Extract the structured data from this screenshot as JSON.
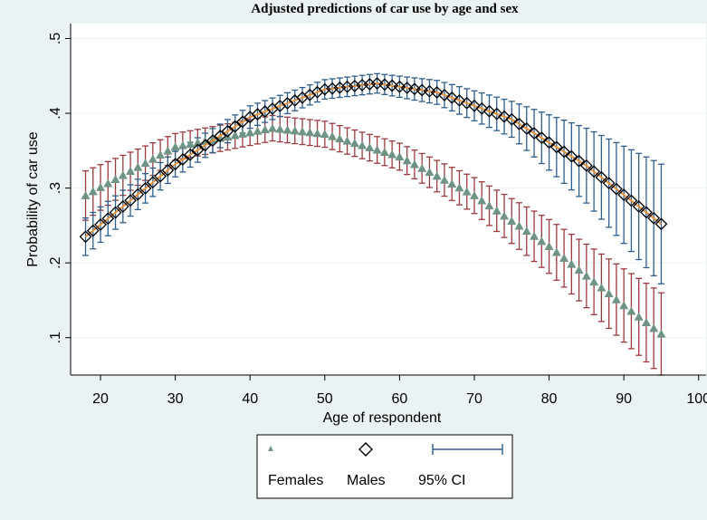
{
  "chart_data": {
    "type": "line",
    "title": "Adjusted predictions of car use by age and sex",
    "xlabel": "Age of respondent",
    "ylabel": "Probability of car use",
    "xlim": [
      16,
      101
    ],
    "ylim": [
      0.05,
      0.52
    ],
    "x_ticks": [
      20,
      30,
      40,
      50,
      60,
      70,
      80,
      90,
      100
    ],
    "x_tick_labels": [
      "20",
      "30",
      "40",
      "50",
      "60",
      "70",
      "80",
      "90",
      "100"
    ],
    "y_ticks": [
      0.1,
      0.2,
      0.3,
      0.4,
      0.5
    ],
    "y_tick_labels": [
      ".1",
      ".2",
      ".3",
      ".4",
      ".5"
    ],
    "grid": "horizontal",
    "legend": {
      "position": "bottom",
      "entries": [
        "Females",
        "Males",
        "95% CI"
      ]
    },
    "x_start": 18,
    "x_end": 95,
    "series": [
      {
        "name": "Females",
        "marker": "triangle",
        "color": "#6f9485",
        "ci_color": "#9b3a3e",
        "points": [
          [
            18,
            0.29
          ],
          [
            30,
            0.355
          ],
          [
            43,
            0.38
          ],
          [
            50,
            0.372
          ],
          [
            60,
            0.342
          ],
          [
            70,
            0.29
          ],
          [
            80,
            0.222
          ],
          [
            90,
            0.143
          ],
          [
            95,
            0.105
          ]
        ],
        "ci_halfwidth": [
          [
            18,
            0.033
          ],
          [
            30,
            0.018
          ],
          [
            43,
            0.017
          ],
          [
            60,
            0.018
          ],
          [
            70,
            0.024
          ],
          [
            80,
            0.036
          ],
          [
            90,
            0.049
          ],
          [
            95,
            0.055
          ]
        ]
      },
      {
        "name": "Males",
        "marker": "diamond",
        "color": "#000000",
        "ci_color": "#2d5e8c",
        "points": [
          [
            18,
            0.235
          ],
          [
            30,
            0.332
          ],
          [
            40,
            0.395
          ],
          [
            50,
            0.432
          ],
          [
            57,
            0.44
          ],
          [
            65,
            0.428
          ],
          [
            75,
            0.392
          ],
          [
            85,
            0.33
          ],
          [
            95,
            0.252
          ]
        ],
        "ci_halfwidth": [
          [
            18,
            0.025
          ],
          [
            30,
            0.017
          ],
          [
            40,
            0.015
          ],
          [
            50,
            0.013
          ],
          [
            57,
            0.013
          ],
          [
            65,
            0.016
          ],
          [
            75,
            0.024
          ],
          [
            85,
            0.05
          ],
          [
            95,
            0.08
          ]
        ]
      }
    ]
  },
  "colors": {
    "background": "#eaf2f3",
    "plot_background": "#ffffff",
    "grid": "#eaf2f3"
  }
}
